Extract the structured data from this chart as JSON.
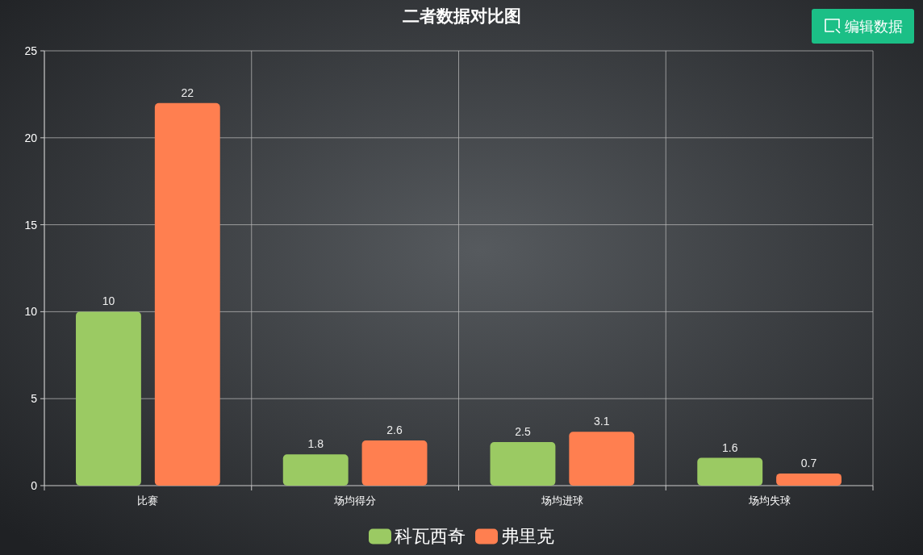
{
  "chart_data": {
    "type": "bar",
    "title": "二者数据对比图",
    "categories": [
      "比赛",
      "场均得分",
      "场均进球",
      "场均失球"
    ],
    "series": [
      {
        "name": "科瓦西奇",
        "color": "#9bca63",
        "values": [
          10,
          1.8,
          2.5,
          1.6
        ]
      },
      {
        "name": "弗里克",
        "color": "#ff7f50",
        "values": [
          22,
          2.6,
          3.1,
          0.7
        ]
      }
    ],
    "ylim": [
      0,
      25
    ],
    "yticks": [
      0,
      5,
      10,
      15,
      20,
      25
    ],
    "grid": true,
    "legend": "bottom",
    "data_labels": true,
    "annotations": [
      "编辑数据"
    ]
  }
}
